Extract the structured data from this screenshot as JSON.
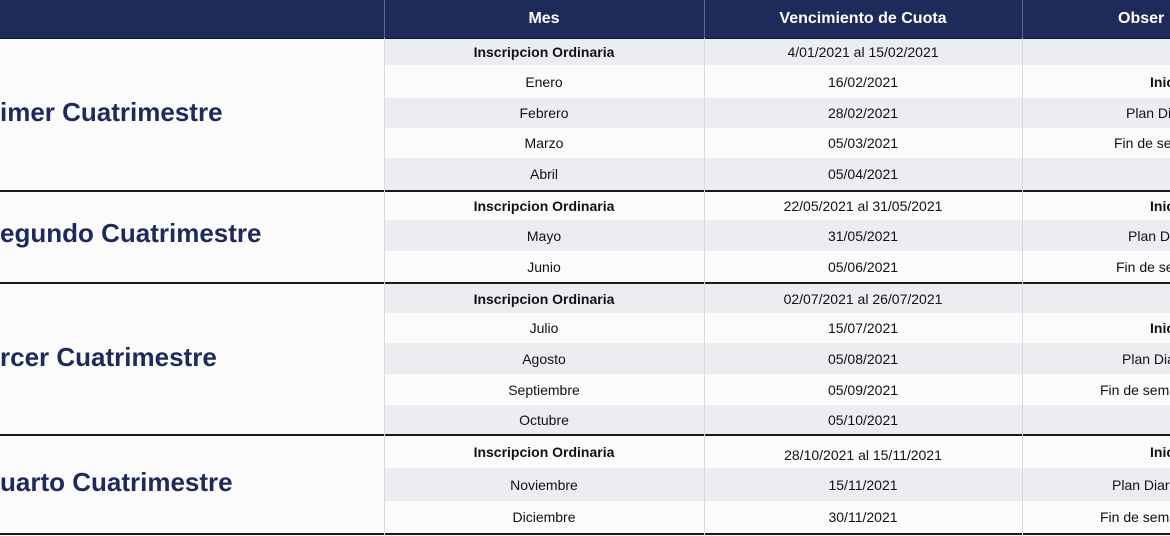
{
  "header": {
    "mes": "Mes",
    "vencimiento": "Vencimiento de Cuota",
    "observaciones": "Obser"
  },
  "groups": [
    {
      "title": "imer Cuatrimestre",
      "rows": [
        {
          "mes": "Inscripcion Ordinaria",
          "venc": "4/01/2021 al 15/02/2021",
          "obs": ""
        },
        {
          "mes": "Enero",
          "venc": "16/02/2021",
          "obs": "Inicio"
        },
        {
          "mes": "Febrero",
          "venc": "28/02/2021",
          "obs": "Plan Diario"
        },
        {
          "mes": "Marzo",
          "venc": "05/03/2021",
          "obs": "Fin de semana"
        },
        {
          "mes": "Abril",
          "venc": "05/04/2021",
          "obs": ""
        }
      ]
    },
    {
      "title": "egundo Cuatrimestre",
      "rows": [
        {
          "mes": "Inscripcion Ordinaria",
          "venc": "22/05/2021 al 31/05/2021",
          "obs": "Inicio"
        },
        {
          "mes": "Mayo",
          "venc": "31/05/2021",
          "obs": "Plan Diario"
        },
        {
          "mes": "Junio",
          "venc": "05/06/2021",
          "obs": "Fin de sema"
        }
      ]
    },
    {
      "title": "rcer Cuatrimestre",
      "rows": [
        {
          "mes": "Inscripcion Ordinaria",
          "venc": "02/07/2021 al 26/07/2021",
          "obs": ""
        },
        {
          "mes": "Julio",
          "venc": "15/07/2021",
          "obs": "Inicio"
        },
        {
          "mes": "Agosto",
          "venc": "05/08/2021",
          "obs": "Plan Diario"
        },
        {
          "mes": "Septiembre",
          "venc": "05/09/2021",
          "obs": "Fin de semana"
        },
        {
          "mes": "Octubre",
          "venc": "05/10/2021",
          "obs": ""
        }
      ]
    },
    {
      "title": "uarto Cuatrimestre",
      "rows": [
        {
          "mes": "Inscripcion Ordinaria",
          "venc": "28/10/2021 al 15/11/2021",
          "obs": "Inicio"
        },
        {
          "mes": "Noviembre",
          "venc": "15/11/2021",
          "obs": "Plan Diario ("
        },
        {
          "mes": "Diciembre",
          "venc": "30/11/2021",
          "obs": "Fin de semana"
        }
      ]
    }
  ]
}
